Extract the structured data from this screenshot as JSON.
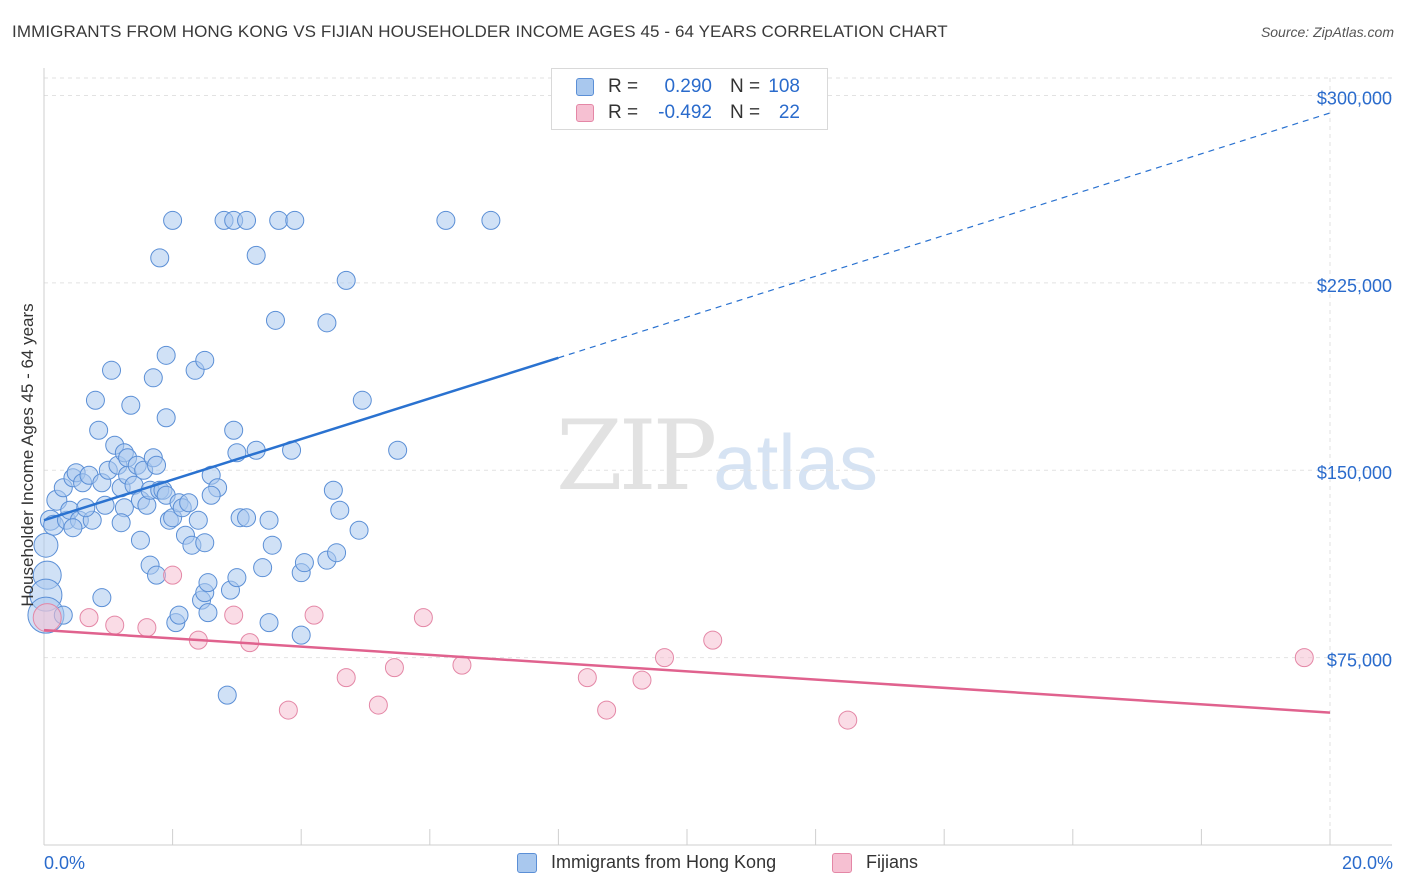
{
  "header": {
    "title": "IMMIGRANTS FROM HONG KONG VS FIJIAN HOUSEHOLDER INCOME AGES 45 - 64 YEARS CORRELATION CHART",
    "source": "Source: ZipAtlas.com"
  },
  "legend_top": {
    "rows": [
      {
        "r_label": "R =",
        "r_value": "0.290",
        "n_label": "N =",
        "n_value": "108"
      },
      {
        "r_label": "R =",
        "r_value": "-0.492",
        "n_label": "N =",
        "n_value": "22"
      }
    ]
  },
  "legend_bottom": {
    "series1": "Immigrants from Hong Kong",
    "series2": "Fijians"
  },
  "watermark": {
    "zip": "ZIP",
    "atlas": "atlas"
  },
  "colors": {
    "blue_fill": "#a9c8ee",
    "blue_stroke": "#5b8fd6",
    "blue_line": "#2a72d0",
    "pink_fill": "#f6c0d2",
    "pink_stroke": "#e487a6",
    "pink_line": "#e0628e",
    "tick_text": "#2a6bcc"
  },
  "chart_data": {
    "type": "scatter",
    "ylabel": "Householder Income Ages 45 - 64 years",
    "xlim": [
      0,
      20
    ],
    "ylim": [
      0,
      307000
    ],
    "x_tick_labels": [
      "0.0%",
      "20.0%"
    ],
    "y_ticks": [
      75000,
      150000,
      225000,
      300000
    ],
    "y_tick_labels": [
      "$75,000",
      "$150,000",
      "$225,000",
      "$300,000"
    ],
    "grid": true,
    "series": [
      {
        "name": "Immigrants from Hong Kong",
        "color": "#a9c8ee",
        "trend": {
          "x": [
            0.0,
            8.0
          ],
          "y": [
            130000,
            195000
          ],
          "dashed_extension_to": [
            20.0,
            293000
          ]
        },
        "points": [
          {
            "x": 0.03,
            "y": 120000,
            "s": 12
          },
          {
            "x": 0.05,
            "y": 108000,
            "s": 14
          },
          {
            "x": 0.03,
            "y": 100000,
            "s": 16
          },
          {
            "x": 0.03,
            "y": 92000,
            "s": 18
          },
          {
            "x": 0.1,
            "y": 130000,
            "s": 10
          },
          {
            "x": 0.15,
            "y": 128000,
            "s": 10
          },
          {
            "x": 0.2,
            "y": 138000,
            "s": 10
          },
          {
            "x": 0.3,
            "y": 143000,
            "s": 9
          },
          {
            "x": 0.35,
            "y": 130000,
            "s": 9
          },
          {
            "x": 0.4,
            "y": 134000,
            "s": 9
          },
          {
            "x": 0.45,
            "y": 147000,
            "s": 9
          },
          {
            "x": 0.5,
            "y": 149000,
            "s": 9
          },
          {
            "x": 0.55,
            "y": 130000,
            "s": 9
          },
          {
            "x": 0.6,
            "y": 145000,
            "s": 9
          },
          {
            "x": 0.7,
            "y": 148000,
            "s": 9
          },
          {
            "x": 0.75,
            "y": 130000,
            "s": 9
          },
          {
            "x": 0.8,
            "y": 178000,
            "s": 9
          },
          {
            "x": 0.85,
            "y": 166000,
            "s": 9
          },
          {
            "x": 0.9,
            "y": 145000,
            "s": 9
          },
          {
            "x": 0.95,
            "y": 136000,
            "s": 9
          },
          {
            "x": 0.9,
            "y": 99000,
            "s": 9
          },
          {
            "x": 1.0,
            "y": 150000,
            "s": 9
          },
          {
            "x": 1.05,
            "y": 190000,
            "s": 9
          },
          {
            "x": 1.1,
            "y": 160000,
            "s": 9
          },
          {
            "x": 1.15,
            "y": 152000,
            "s": 9
          },
          {
            "x": 1.2,
            "y": 143000,
            "s": 9
          },
          {
            "x": 1.25,
            "y": 135000,
            "s": 9
          },
          {
            "x": 1.3,
            "y": 148000,
            "s": 9
          },
          {
            "x": 1.25,
            "y": 157000,
            "s": 9
          },
          {
            "x": 1.3,
            "y": 155000,
            "s": 9
          },
          {
            "x": 1.35,
            "y": 176000,
            "s": 9
          },
          {
            "x": 1.4,
            "y": 144000,
            "s": 9
          },
          {
            "x": 1.45,
            "y": 152000,
            "s": 9
          },
          {
            "x": 1.5,
            "y": 138000,
            "s": 9
          },
          {
            "x": 1.55,
            "y": 150000,
            "s": 9
          },
          {
            "x": 1.5,
            "y": 122000,
            "s": 9
          },
          {
            "x": 1.6,
            "y": 136000,
            "s": 9
          },
          {
            "x": 1.65,
            "y": 142000,
            "s": 9
          },
          {
            "x": 1.65,
            "y": 112000,
            "s": 9
          },
          {
            "x": 1.7,
            "y": 155000,
            "s": 9
          },
          {
            "x": 1.7,
            "y": 187000,
            "s": 9
          },
          {
            "x": 1.75,
            "y": 108000,
            "s": 9
          },
          {
            "x": 1.75,
            "y": 152000,
            "s": 9
          },
          {
            "x": 1.8,
            "y": 235000,
            "s": 9
          },
          {
            "x": 1.8,
            "y": 142000,
            "s": 9
          },
          {
            "x": 1.85,
            "y": 142000,
            "s": 9
          },
          {
            "x": 1.9,
            "y": 196000,
            "s": 9
          },
          {
            "x": 1.9,
            "y": 140000,
            "s": 9
          },
          {
            "x": 1.9,
            "y": 171000,
            "s": 9
          },
          {
            "x": 1.95,
            "y": 130000,
            "s": 9
          },
          {
            "x": 2.0,
            "y": 131000,
            "s": 9
          },
          {
            "x": 2.0,
            "y": 250000,
            "s": 9
          },
          {
            "x": 2.05,
            "y": 89000,
            "s": 9
          },
          {
            "x": 2.1,
            "y": 92000,
            "s": 9
          },
          {
            "x": 2.1,
            "y": 137000,
            "s": 9
          },
          {
            "x": 2.15,
            "y": 135000,
            "s": 9
          },
          {
            "x": 2.2,
            "y": 124000,
            "s": 9
          },
          {
            "x": 2.25,
            "y": 137000,
            "s": 9
          },
          {
            "x": 2.3,
            "y": 120000,
            "s": 9
          },
          {
            "x": 2.35,
            "y": 190000,
            "s": 9
          },
          {
            "x": 2.4,
            "y": 130000,
            "s": 9
          },
          {
            "x": 2.45,
            "y": 98000,
            "s": 9
          },
          {
            "x": 2.5,
            "y": 194000,
            "s": 9
          },
          {
            "x": 2.5,
            "y": 121000,
            "s": 9
          },
          {
            "x": 2.5,
            "y": 101000,
            "s": 9
          },
          {
            "x": 2.55,
            "y": 105000,
            "s": 9
          },
          {
            "x": 2.55,
            "y": 93000,
            "s": 9
          },
          {
            "x": 2.6,
            "y": 148000,
            "s": 9
          },
          {
            "x": 2.7,
            "y": 143000,
            "s": 9
          },
          {
            "x": 2.6,
            "y": 140000,
            "s": 9
          },
          {
            "x": 2.8,
            "y": 250000,
            "s": 9
          },
          {
            "x": 2.85,
            "y": 60000,
            "s": 9
          },
          {
            "x": 2.9,
            "y": 102000,
            "s": 9
          },
          {
            "x": 2.95,
            "y": 250000,
            "s": 9
          },
          {
            "x": 2.95,
            "y": 166000,
            "s": 9
          },
          {
            "x": 3.0,
            "y": 107000,
            "s": 9
          },
          {
            "x": 3.0,
            "y": 157000,
            "s": 9
          },
          {
            "x": 3.05,
            "y": 131000,
            "s": 9
          },
          {
            "x": 3.15,
            "y": 131000,
            "s": 9
          },
          {
            "x": 3.15,
            "y": 250000,
            "s": 9
          },
          {
            "x": 3.3,
            "y": 236000,
            "s": 9
          },
          {
            "x": 3.3,
            "y": 158000,
            "s": 9
          },
          {
            "x": 3.4,
            "y": 111000,
            "s": 9
          },
          {
            "x": 3.5,
            "y": 130000,
            "s": 9
          },
          {
            "x": 3.5,
            "y": 89000,
            "s": 9
          },
          {
            "x": 3.55,
            "y": 120000,
            "s": 9
          },
          {
            "x": 3.6,
            "y": 210000,
            "s": 9
          },
          {
            "x": 3.65,
            "y": 250000,
            "s": 9
          },
          {
            "x": 3.85,
            "y": 158000,
            "s": 9
          },
          {
            "x": 3.9,
            "y": 250000,
            "s": 9
          },
          {
            "x": 4.0,
            "y": 84000,
            "s": 9
          },
          {
            "x": 4.0,
            "y": 109000,
            "s": 9
          },
          {
            "x": 4.05,
            "y": 113000,
            "s": 9
          },
          {
            "x": 4.4,
            "y": 114000,
            "s": 9
          },
          {
            "x": 4.4,
            "y": 209000,
            "s": 9
          },
          {
            "x": 4.5,
            "y": 142000,
            "s": 9
          },
          {
            "x": 4.55,
            "y": 117000,
            "s": 9
          },
          {
            "x": 4.6,
            "y": 134000,
            "s": 9
          },
          {
            "x": 4.7,
            "y": 226000,
            "s": 9
          },
          {
            "x": 4.9,
            "y": 126000,
            "s": 9
          },
          {
            "x": 4.95,
            "y": 178000,
            "s": 9
          },
          {
            "x": 5.5,
            "y": 158000,
            "s": 9
          },
          {
            "x": 6.25,
            "y": 250000,
            "s": 9
          },
          {
            "x": 6.95,
            "y": 250000,
            "s": 9
          },
          {
            "x": 1.2,
            "y": 129000,
            "s": 9
          },
          {
            "x": 0.45,
            "y": 127000,
            "s": 9
          },
          {
            "x": 0.3,
            "y": 92000,
            "s": 9
          },
          {
            "x": 0.65,
            "y": 135000,
            "s": 9
          }
        ]
      },
      {
        "name": "Fijians",
        "color": "#f6c0d2",
        "trend": {
          "x": [
            0.0,
            20.0
          ],
          "y": [
            86000,
            53000
          ]
        },
        "points": [
          {
            "x": 0.05,
            "y": 91000,
            "s": 14
          },
          {
            "x": 0.7,
            "y": 91000,
            "s": 9
          },
          {
            "x": 1.1,
            "y": 88000,
            "s": 9
          },
          {
            "x": 1.6,
            "y": 87000,
            "s": 9
          },
          {
            "x": 2.0,
            "y": 108000,
            "s": 9
          },
          {
            "x": 2.4,
            "y": 82000,
            "s": 9
          },
          {
            "x": 2.95,
            "y": 92000,
            "s": 9
          },
          {
            "x": 3.2,
            "y": 81000,
            "s": 9
          },
          {
            "x": 3.8,
            "y": 54000,
            "s": 9
          },
          {
            "x": 4.2,
            "y": 92000,
            "s": 9
          },
          {
            "x": 4.7,
            "y": 67000,
            "s": 9
          },
          {
            "x": 5.2,
            "y": 56000,
            "s": 9
          },
          {
            "x": 5.45,
            "y": 71000,
            "s": 9
          },
          {
            "x": 5.9,
            "y": 91000,
            "s": 9
          },
          {
            "x": 6.5,
            "y": 72000,
            "s": 9
          },
          {
            "x": 8.45,
            "y": 67000,
            "s": 9
          },
          {
            "x": 8.75,
            "y": 54000,
            "s": 9
          },
          {
            "x": 9.3,
            "y": 66000,
            "s": 9
          },
          {
            "x": 9.65,
            "y": 75000,
            "s": 9
          },
          {
            "x": 10.4,
            "y": 82000,
            "s": 9
          },
          {
            "x": 12.5,
            "y": 50000,
            "s": 9
          },
          {
            "x": 19.6,
            "y": 75000,
            "s": 9
          }
        ]
      }
    ]
  }
}
